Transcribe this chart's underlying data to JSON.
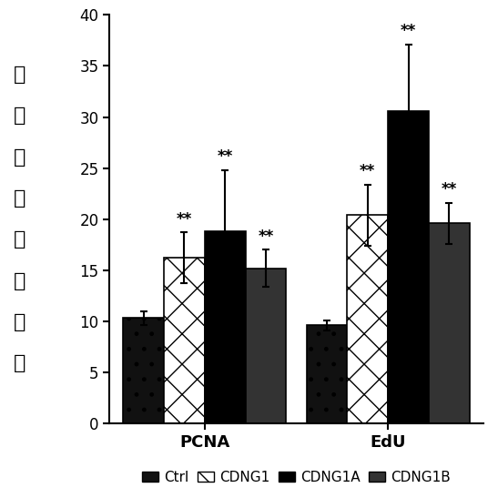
{
  "groups": [
    "PCNA",
    "EdU"
  ],
  "series": [
    "Ctrl",
    "CDNG1",
    "CDNG1A",
    "CDNG1B"
  ],
  "values": {
    "PCNA": [
      10.3,
      16.2,
      18.8,
      15.2
    ],
    "EdU": [
      9.6,
      20.4,
      30.6,
      19.6
    ]
  },
  "errors": {
    "PCNA": [
      0.7,
      2.5,
      6.0,
      1.8
    ],
    "EdU": [
      0.5,
      3.0,
      6.5,
      2.0
    ]
  },
  "significance": {
    "PCNA": [
      false,
      true,
      true,
      true
    ],
    "EdU": [
      false,
      true,
      true,
      true
    ]
  },
  "bar_facecolors": [
    "#111111",
    "#ffffff",
    "#000000",
    "#333333"
  ],
  "bar_edgecolors": [
    "#000000",
    "#000000",
    "#000000",
    "#000000"
  ],
  "hatches": [
    ".",
    "x",
    "",
    ""
  ],
  "ylabel_chars": [
    "心",
    "肌",
    "细",
    "胞",
    "增",
    "殖",
    "指",
    "数"
  ],
  "ylim": [
    0,
    40
  ],
  "yticks": [
    0,
    5,
    10,
    15,
    20,
    25,
    30,
    35,
    40
  ],
  "bar_width": 0.12,
  "group_centers": [
    0.28,
    0.82
  ],
  "xlabel_fontsize": 13,
  "tick_fontsize": 12,
  "sig_fontsize": 12,
  "ylabel_fontsize": 14,
  "legend_fontsize": 11,
  "xlim": [
    0.0,
    1.1
  ]
}
